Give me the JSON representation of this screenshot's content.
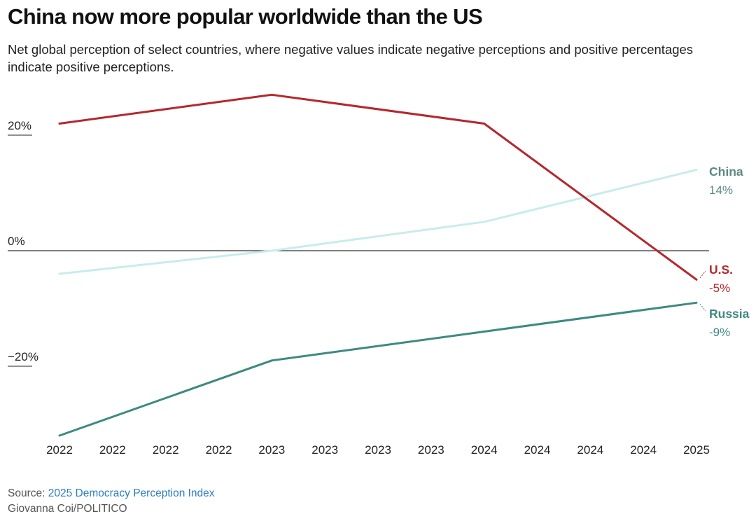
{
  "title": "China now more popular worldwide than the US",
  "subtitle": "Net global perception of select countries, where negative values indicate negative perceptions and positive percentages indicate positive perceptions.",
  "source": {
    "label": "Source: ",
    "link_text": "2025 Democracy Perception Index",
    "credit": "Giovanna Coi/POLITICO"
  },
  "colors": {
    "us": "#b5272d",
    "china": "#c9ecea",
    "china_label": "#5b8a83",
    "russia": "#3d8a80",
    "zero_line": "#333333",
    "link": "#2b7bc0"
  },
  "chart_data": {
    "type": "line",
    "x": [
      0,
      1,
      2,
      3,
      4,
      5,
      6,
      7,
      8,
      9,
      10,
      11,
      12
    ],
    "x_tick_labels": [
      "2022",
      "2022",
      "2022",
      "2022",
      "2023",
      "2023",
      "2023",
      "2023",
      "2024",
      "2024",
      "2024",
      "2024",
      "2025"
    ],
    "y_ticks": [
      {
        "value": 20,
        "label": "20%"
      },
      {
        "value": 0,
        "label": "0%"
      },
      {
        "value": -20,
        "label": "−20%"
      }
    ],
    "ylim": [
      -33,
      28
    ],
    "grid": false,
    "series": [
      {
        "key": "china",
        "name": "China",
        "end_label": "14%",
        "points": [
          [
            0,
            -4
          ],
          [
            4,
            0
          ],
          [
            8,
            5
          ],
          [
            12,
            14
          ]
        ]
      },
      {
        "key": "us",
        "name": "U.S.",
        "end_label": "-5%",
        "points": [
          [
            0,
            22
          ],
          [
            4,
            27
          ],
          [
            8,
            22
          ],
          [
            12,
            -5
          ]
        ]
      },
      {
        "key": "russia",
        "name": "Russia",
        "end_label": "-9%",
        "points": [
          [
            0,
            -32
          ],
          [
            4,
            -19
          ],
          [
            8,
            -14
          ],
          [
            12,
            -9
          ]
        ]
      }
    ]
  }
}
